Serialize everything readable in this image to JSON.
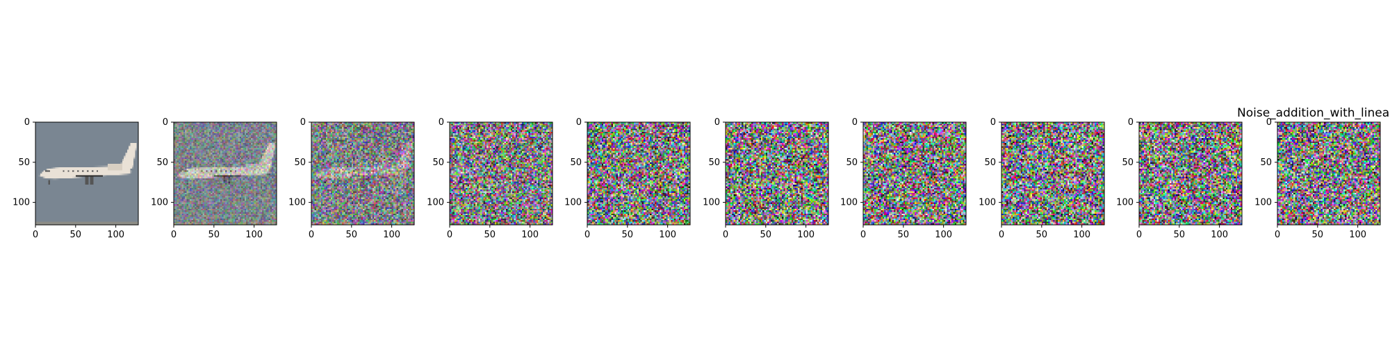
{
  "figure": {
    "title": "Noise_addition_with_linear_",
    "panels": [
      {
        "noise_level": 0.0
      },
      {
        "noise_level": 0.35
      },
      {
        "noise_level": 0.62
      },
      {
        "noise_level": 0.88
      },
      {
        "noise_level": 0.97
      },
      {
        "noise_level": 0.99
      },
      {
        "noise_level": 1.0
      },
      {
        "noise_level": 1.0
      },
      {
        "noise_level": 1.0
      },
      {
        "noise_level": 1.0
      }
    ],
    "x_ticks": [
      "0",
      "50",
      "100"
    ],
    "y_ticks": [
      "0",
      "50",
      "100"
    ],
    "colors": {
      "sky": "#7a8692",
      "ground": "#8c8c86",
      "fuselage": "#e9e1d6",
      "engine": "#d8cfc2",
      "dark": "#2a2a2a"
    }
  }
}
